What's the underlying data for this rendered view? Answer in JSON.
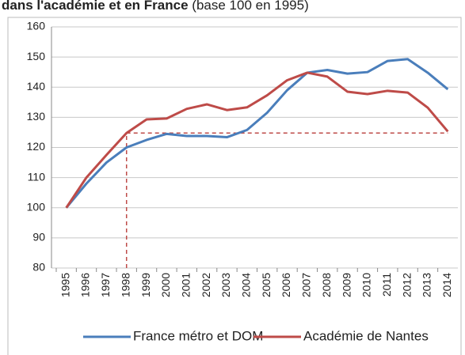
{
  "chart_data": {
    "type": "line",
    "title": "dans l'académie et en France",
    "subtitle": "(base 100 en 1995)",
    "categories": [
      "1995",
      "1996",
      "1997",
      "1998",
      "1999",
      "2000",
      "2001",
      "2002",
      "2003",
      "2004",
      "2005",
      "2006",
      "2007",
      "2008",
      "2009",
      "2010",
      "2011",
      "2012",
      "2013",
      "2014"
    ],
    "series": [
      {
        "name": "France métro et DOM",
        "color": "#4a7ebb",
        "values": [
          100,
          108,
          115,
          120,
          122.5,
          124.5,
          123.8,
          123.8,
          123.4,
          125.8,
          131.5,
          139,
          144.8,
          145.7,
          144.5,
          145,
          148.7,
          149.3,
          144.8,
          139.3
        ]
      },
      {
        "name": "Académie de Nantes",
        "color": "#be4b48",
        "values": [
          100,
          110,
          117.5,
          124.8,
          129.3,
          129.6,
          132.8,
          134.3,
          132.4,
          133.3,
          137.3,
          142.3,
          144.8,
          143.5,
          138.5,
          137.7,
          138.8,
          138.2,
          133.2,
          125.3
        ]
      }
    ],
    "ylim": [
      80,
      160
    ],
    "yticks": [
      80,
      90,
      100,
      110,
      120,
      130,
      140,
      150,
      160
    ],
    "grid": true,
    "legend": "bottom"
  }
}
